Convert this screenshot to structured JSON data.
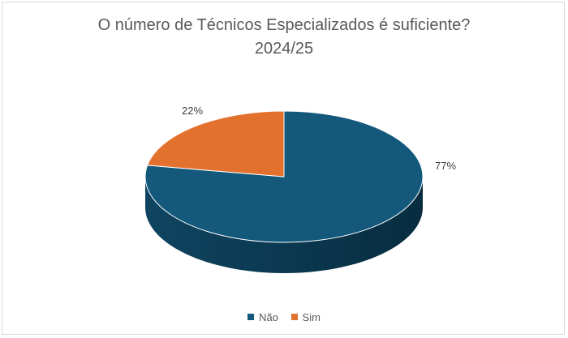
{
  "chart_data": {
    "type": "pie",
    "title": "O número de Técnicos Especializados é suficiente?",
    "subtitle": "2024/25",
    "categories": [
      "Não",
      "Sim"
    ],
    "values": [
      77,
      22
    ],
    "data_labels": [
      "77%",
      "22%"
    ],
    "colors": [
      "#14597c",
      "#e2712e"
    ],
    "legend_position": "bottom",
    "style": "3d"
  }
}
